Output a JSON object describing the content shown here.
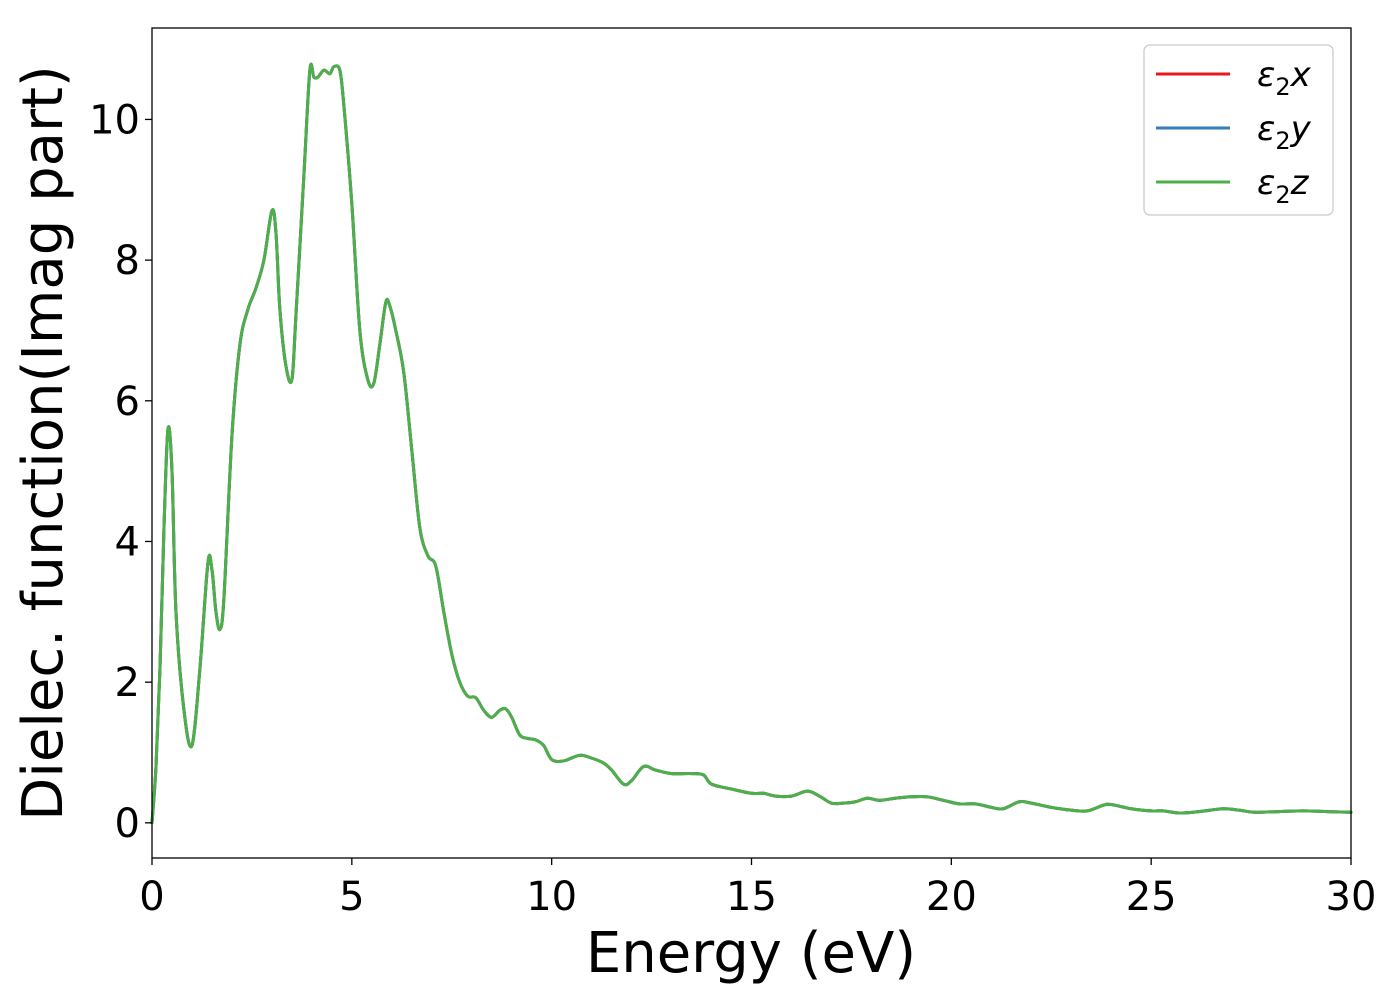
{
  "chart_data": {
    "type": "line",
    "title": "",
    "xlabel": "Energy (eV)",
    "ylabel": "Dielec. function(Imag part)",
    "xlim": [
      0,
      30
    ],
    "ylim": [
      -0.5,
      11.3
    ],
    "xticks": [
      0,
      5,
      10,
      15,
      20,
      25,
      30
    ],
    "yticks": [
      0,
      2,
      4,
      6,
      8,
      10
    ],
    "grid": false,
    "legend_position": "top-right",
    "legend": [
      {
        "base": "ε",
        "sub": "2",
        "var": "x",
        "color": "#e41a1c"
      },
      {
        "base": "ε",
        "sub": "2",
        "var": "y",
        "color": "#377eb8"
      },
      {
        "base": "ε",
        "sub": "2",
        "var": "z",
        "color": "#4daf4a"
      }
    ],
    "x": [
      0,
      0.1,
      0.2,
      0.3,
      0.4,
      0.5,
      0.6,
      0.8,
      1.0,
      1.2,
      1.4,
      1.5,
      1.6,
      1.7,
      1.8,
      2.0,
      2.2,
      2.4,
      2.6,
      2.8,
      3.0,
      3.1,
      3.2,
      3.35,
      3.5,
      3.6,
      3.8,
      3.95,
      4.05,
      4.15,
      4.3,
      4.45,
      4.55,
      4.7,
      4.8,
      5.0,
      5.2,
      5.4,
      5.55,
      5.7,
      5.85,
      5.95,
      6.1,
      6.3,
      6.5,
      6.7,
      6.9,
      7.1,
      7.3,
      7.5,
      7.7,
      7.9,
      8.1,
      8.3,
      8.5,
      8.7,
      8.85,
      9.0,
      9.2,
      9.4,
      9.6,
      9.8,
      10.0,
      10.3,
      10.7,
      11.0,
      11.3,
      11.5,
      11.8,
      12.0,
      12.3,
      12.6,
      13.0,
      13.5,
      13.8,
      14.0,
      14.5,
      15.0,
      15.3,
      15.6,
      16.0,
      16.4,
      16.7,
      17.0,
      17.3,
      17.6,
      17.9,
      18.2,
      18.6,
      19.0,
      19.4,
      19.8,
      20.2,
      20.6,
      21.0,
      21.3,
      21.7,
      22.0,
      22.5,
      23.0,
      23.4,
      23.8,
      24.0,
      24.5,
      25.0,
      25.3,
      25.7,
      26.2,
      26.8,
      27.2,
      27.6,
      28.2,
      28.8,
      29.4,
      30.0
    ],
    "series": [
      {
        "name": "ε2x",
        "color": "#e41a1c",
        "values": [
          0.0,
          0.8,
          2.2,
          4.2,
          5.6,
          5.0,
          3.0,
          1.6,
          1.1,
          2.2,
          3.7,
          3.6,
          3.0,
          2.75,
          3.2,
          5.5,
          6.8,
          7.3,
          7.6,
          8.0,
          8.7,
          8.4,
          7.3,
          6.5,
          6.3,
          7.2,
          9.2,
          10.7,
          10.6,
          10.6,
          10.7,
          10.65,
          10.75,
          10.7,
          10.2,
          8.8,
          7.0,
          6.3,
          6.25,
          6.8,
          7.4,
          7.35,
          7.0,
          6.4,
          5.3,
          4.2,
          3.8,
          3.65,
          3.0,
          2.4,
          2.0,
          1.8,
          1.78,
          1.6,
          1.5,
          1.6,
          1.62,
          1.5,
          1.25,
          1.2,
          1.18,
          1.1,
          0.9,
          0.88,
          0.96,
          0.92,
          0.85,
          0.75,
          0.55,
          0.6,
          0.8,
          0.75,
          0.7,
          0.7,
          0.68,
          0.55,
          0.48,
          0.42,
          0.42,
          0.38,
          0.38,
          0.45,
          0.38,
          0.28,
          0.28,
          0.3,
          0.35,
          0.32,
          0.35,
          0.37,
          0.37,
          0.32,
          0.27,
          0.27,
          0.22,
          0.2,
          0.3,
          0.28,
          0.22,
          0.18,
          0.17,
          0.25,
          0.26,
          0.2,
          0.17,
          0.17,
          0.14,
          0.16,
          0.2,
          0.18,
          0.15,
          0.16,
          0.17,
          0.16,
          0.15
        ]
      },
      {
        "name": "ε2y",
        "color": "#377eb8",
        "values": [
          0.0,
          0.8,
          2.2,
          4.2,
          5.6,
          5.0,
          3.0,
          1.6,
          1.1,
          2.2,
          3.7,
          3.6,
          3.0,
          2.75,
          3.2,
          5.5,
          6.8,
          7.3,
          7.6,
          8.0,
          8.7,
          8.4,
          7.3,
          6.5,
          6.3,
          7.2,
          9.2,
          10.7,
          10.6,
          10.6,
          10.7,
          10.65,
          10.75,
          10.7,
          10.2,
          8.8,
          7.0,
          6.3,
          6.25,
          6.8,
          7.4,
          7.35,
          7.0,
          6.4,
          5.3,
          4.2,
          3.8,
          3.65,
          3.0,
          2.4,
          2.0,
          1.8,
          1.78,
          1.6,
          1.5,
          1.6,
          1.62,
          1.5,
          1.25,
          1.2,
          1.18,
          1.1,
          0.9,
          0.88,
          0.96,
          0.92,
          0.85,
          0.75,
          0.55,
          0.6,
          0.8,
          0.75,
          0.7,
          0.7,
          0.68,
          0.55,
          0.48,
          0.42,
          0.42,
          0.38,
          0.38,
          0.45,
          0.38,
          0.28,
          0.28,
          0.3,
          0.35,
          0.32,
          0.35,
          0.37,
          0.37,
          0.32,
          0.27,
          0.27,
          0.22,
          0.2,
          0.3,
          0.28,
          0.22,
          0.18,
          0.17,
          0.25,
          0.26,
          0.2,
          0.17,
          0.17,
          0.14,
          0.16,
          0.2,
          0.18,
          0.15,
          0.16,
          0.17,
          0.16,
          0.15
        ]
      },
      {
        "name": "ε2z",
        "color": "#4daf4a",
        "values": [
          0.0,
          0.8,
          2.2,
          4.2,
          5.6,
          5.0,
          3.0,
          1.6,
          1.1,
          2.2,
          3.7,
          3.6,
          3.0,
          2.75,
          3.2,
          5.5,
          6.8,
          7.3,
          7.6,
          8.0,
          8.7,
          8.4,
          7.3,
          6.5,
          6.3,
          7.2,
          9.2,
          10.7,
          10.6,
          10.6,
          10.7,
          10.65,
          10.75,
          10.7,
          10.2,
          8.8,
          7.0,
          6.3,
          6.25,
          6.8,
          7.4,
          7.35,
          7.0,
          6.4,
          5.3,
          4.2,
          3.8,
          3.65,
          3.0,
          2.4,
          2.0,
          1.8,
          1.78,
          1.6,
          1.5,
          1.6,
          1.62,
          1.5,
          1.25,
          1.2,
          1.18,
          1.1,
          0.9,
          0.88,
          0.96,
          0.92,
          0.85,
          0.75,
          0.55,
          0.6,
          0.8,
          0.75,
          0.7,
          0.7,
          0.68,
          0.55,
          0.48,
          0.42,
          0.42,
          0.38,
          0.38,
          0.45,
          0.38,
          0.28,
          0.28,
          0.3,
          0.35,
          0.32,
          0.35,
          0.37,
          0.37,
          0.32,
          0.27,
          0.27,
          0.22,
          0.2,
          0.3,
          0.28,
          0.22,
          0.18,
          0.17,
          0.25,
          0.26,
          0.2,
          0.17,
          0.17,
          0.14,
          0.16,
          0.2,
          0.18,
          0.15,
          0.16,
          0.17,
          0.16,
          0.15
        ]
      }
    ]
  }
}
